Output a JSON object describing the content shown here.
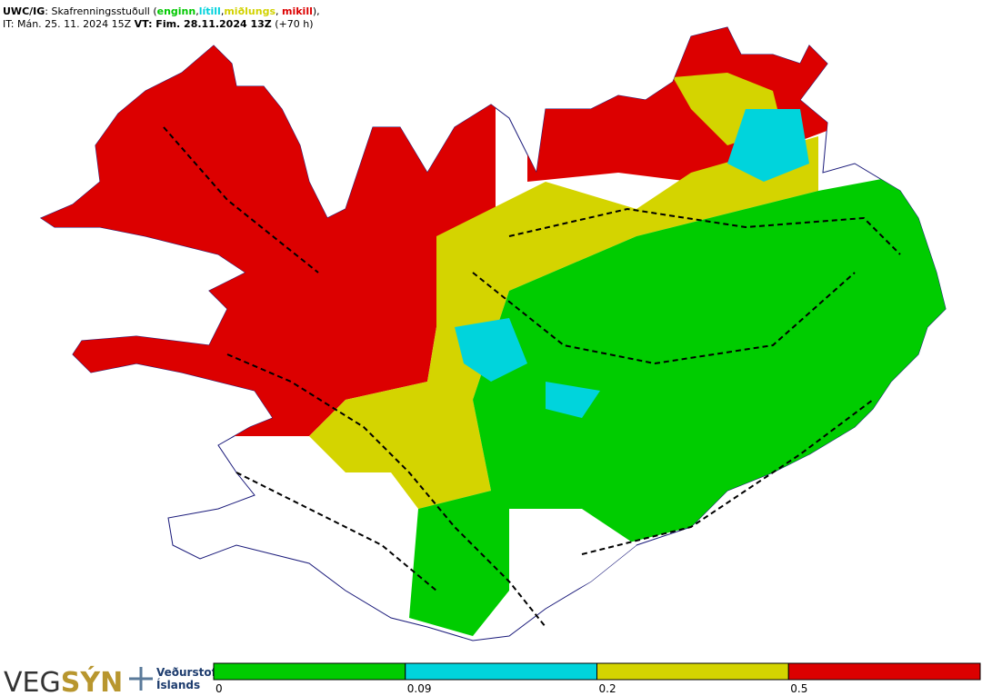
{
  "header": {
    "title_segments": [
      {
        "text": "UWC/IG",
        "bold": true
      },
      {
        "text": ": Skafrenningsstuðull ("
      },
      {
        "text": "enginn",
        "color": "#00c800",
        "bold": true
      },
      {
        "text": ","
      },
      {
        "text": "lítill",
        "color": "#00d2dc",
        "bold": true
      },
      {
        "text": ","
      },
      {
        "text": "miðlungs",
        "color": "#d2d200",
        "bold": true
      },
      {
        "text": ", "
      },
      {
        "text": "mikill",
        "color": "#dc0000",
        "bold": true
      },
      {
        "text": "),"
      }
    ],
    "time_segments": [
      {
        "text": "IT: Mán. 25. 11. 2024 15Z "
      },
      {
        "text": "VT: Fim. 28.11.2024 13Z",
        "bold": true
      },
      {
        "text": " (+70 h)"
      }
    ]
  },
  "colorbar": {
    "ticks": [
      0,
      0.09,
      0.2,
      0.5
    ],
    "colors": [
      "#00cc00",
      "#00d4dc",
      "#d4d400",
      "#dc0000"
    ]
  },
  "logo": {
    "veg": "VEG",
    "syn": "SÝN",
    "institute_line1": "Veðurstofa",
    "institute_line2": "Íslands"
  }
}
